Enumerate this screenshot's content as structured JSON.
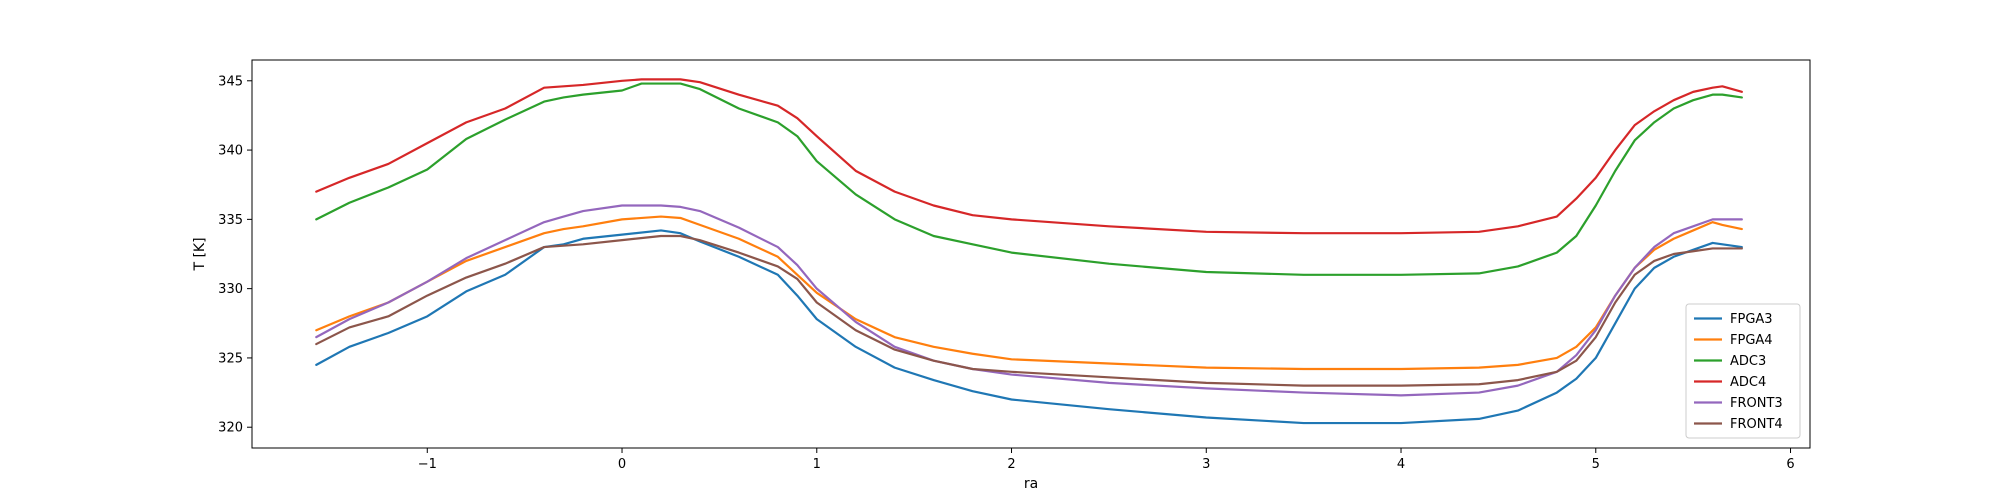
{
  "chart_data": {
    "type": "line",
    "title": "",
    "xlabel": "ra",
    "ylabel": "T [K]",
    "xlim": [
      -1.9,
      6.1
    ],
    "ylim": [
      318.5,
      346.5
    ],
    "xticks": [
      -1,
      0,
      1,
      2,
      3,
      4,
      5,
      6
    ],
    "yticks": [
      320,
      325,
      330,
      335,
      340,
      345
    ],
    "grid": false,
    "legend_position": "lower-right",
    "series": [
      {
        "name": "FPGA3",
        "color": "#1f77b4",
        "x": [
          -1.57,
          -1.4,
          -1.2,
          -1.0,
          -0.8,
          -0.6,
          -0.4,
          -0.3,
          -0.2,
          0.0,
          0.2,
          0.3,
          0.4,
          0.6,
          0.8,
          0.9,
          1.0,
          1.2,
          1.4,
          1.6,
          1.8,
          2.0,
          2.5,
          3.0,
          3.5,
          4.0,
          4.4,
          4.6,
          4.8,
          4.9,
          5.0,
          5.1,
          5.2,
          5.3,
          5.4,
          5.5,
          5.6,
          5.65,
          5.75
        ],
        "y": [
          324.5,
          325.8,
          326.8,
          328.0,
          329.8,
          331.0,
          333.0,
          333.2,
          333.6,
          333.9,
          334.2,
          334.0,
          333.4,
          332.3,
          331.0,
          329.5,
          327.8,
          325.8,
          324.3,
          323.4,
          322.6,
          322.0,
          321.3,
          320.7,
          320.3,
          320.3,
          320.6,
          321.2,
          322.5,
          323.5,
          325.0,
          327.5,
          330.0,
          331.5,
          332.3,
          332.8,
          333.3,
          333.2,
          333.0
        ]
      },
      {
        "name": "FPGA4",
        "color": "#ff7f0e",
        "x": [
          -1.57,
          -1.4,
          -1.2,
          -1.0,
          -0.8,
          -0.6,
          -0.4,
          -0.3,
          -0.2,
          0.0,
          0.2,
          0.3,
          0.4,
          0.6,
          0.8,
          0.9,
          1.0,
          1.2,
          1.4,
          1.6,
          1.8,
          2.0,
          2.5,
          3.0,
          3.5,
          4.0,
          4.4,
          4.6,
          4.8,
          4.9,
          5.0,
          5.1,
          5.2,
          5.3,
          5.4,
          5.5,
          5.6,
          5.65,
          5.75
        ],
        "y": [
          327.0,
          328.0,
          329.0,
          330.5,
          332.0,
          333.0,
          334.0,
          334.3,
          334.5,
          335.0,
          335.2,
          335.1,
          334.6,
          333.6,
          332.3,
          331.0,
          329.7,
          327.8,
          326.5,
          325.8,
          325.3,
          324.9,
          324.6,
          324.3,
          324.2,
          324.2,
          324.3,
          324.5,
          325.0,
          325.8,
          327.2,
          329.5,
          331.5,
          332.8,
          333.6,
          334.2,
          334.8,
          334.6,
          334.3
        ]
      },
      {
        "name": "ADC3",
        "color": "#2ca02c",
        "x": [
          -1.57,
          -1.4,
          -1.2,
          -1.0,
          -0.8,
          -0.6,
          -0.4,
          -0.3,
          -0.2,
          0.0,
          0.1,
          0.2,
          0.3,
          0.4,
          0.6,
          0.8,
          0.9,
          1.0,
          1.2,
          1.4,
          1.6,
          1.8,
          2.0,
          2.5,
          3.0,
          3.5,
          4.0,
          4.4,
          4.6,
          4.8,
          4.9,
          5.0,
          5.1,
          5.2,
          5.3,
          5.4,
          5.5,
          5.6,
          5.65,
          5.75
        ],
        "y": [
          335.0,
          336.2,
          337.3,
          338.6,
          340.8,
          342.2,
          343.5,
          343.8,
          344.0,
          344.3,
          344.8,
          344.8,
          344.8,
          344.4,
          343.0,
          342.0,
          341.0,
          339.2,
          336.8,
          335.0,
          333.8,
          333.2,
          332.6,
          331.8,
          331.2,
          331.0,
          331.0,
          331.1,
          331.6,
          332.6,
          333.8,
          336.0,
          338.5,
          340.7,
          342.0,
          343.0,
          343.6,
          344.0,
          344.0,
          343.8
        ]
      },
      {
        "name": "ADC4",
        "color": "#d62728",
        "x": [
          -1.57,
          -1.4,
          -1.2,
          -1.0,
          -0.8,
          -0.6,
          -0.4,
          -0.3,
          -0.2,
          0.0,
          0.1,
          0.2,
          0.3,
          0.4,
          0.6,
          0.8,
          0.9,
          1.0,
          1.2,
          1.4,
          1.6,
          1.8,
          2.0,
          2.5,
          3.0,
          3.5,
          4.0,
          4.4,
          4.6,
          4.8,
          4.9,
          5.0,
          5.1,
          5.2,
          5.3,
          5.4,
          5.5,
          5.6,
          5.65,
          5.75
        ],
        "y": [
          337.0,
          338.0,
          339.0,
          340.5,
          342.0,
          343.0,
          344.5,
          344.6,
          344.7,
          345.0,
          345.1,
          345.1,
          345.1,
          344.9,
          344.0,
          343.2,
          342.3,
          341.0,
          338.5,
          337.0,
          336.0,
          335.3,
          335.0,
          334.5,
          334.1,
          334.0,
          334.0,
          334.1,
          334.5,
          335.2,
          336.5,
          338.0,
          340.0,
          341.8,
          342.8,
          343.6,
          344.2,
          344.5,
          344.6,
          344.2
        ]
      },
      {
        "name": "FRONT3",
        "color": "#9467bd",
        "x": [
          -1.57,
          -1.4,
          -1.2,
          -1.0,
          -0.8,
          -0.6,
          -0.4,
          -0.3,
          -0.2,
          0.0,
          0.2,
          0.3,
          0.4,
          0.6,
          0.8,
          0.9,
          1.0,
          1.2,
          1.4,
          1.6,
          1.8,
          2.0,
          2.5,
          3.0,
          3.5,
          4.0,
          4.4,
          4.6,
          4.8,
          4.9,
          5.0,
          5.1,
          5.2,
          5.3,
          5.4,
          5.5,
          5.6,
          5.65,
          5.75
        ],
        "y": [
          326.5,
          327.8,
          329.0,
          330.5,
          332.2,
          333.5,
          334.8,
          335.2,
          335.6,
          336.0,
          336.0,
          335.9,
          335.6,
          334.4,
          333.0,
          331.7,
          330.0,
          327.6,
          325.8,
          324.8,
          324.2,
          323.8,
          323.2,
          322.8,
          322.5,
          322.3,
          322.5,
          323.0,
          324.0,
          325.2,
          327.0,
          329.5,
          331.5,
          333.0,
          334.0,
          334.5,
          335.0,
          335.0,
          335.0
        ]
      },
      {
        "name": "FRONT4",
        "color": "#8c564b",
        "x": [
          -1.57,
          -1.4,
          -1.2,
          -1.0,
          -0.8,
          -0.6,
          -0.4,
          -0.3,
          -0.2,
          0.0,
          0.2,
          0.3,
          0.4,
          0.6,
          0.8,
          0.9,
          1.0,
          1.2,
          1.4,
          1.6,
          1.8,
          2.0,
          2.5,
          3.0,
          3.5,
          4.0,
          4.4,
          4.6,
          4.8,
          4.9,
          5.0,
          5.1,
          5.2,
          5.3,
          5.4,
          5.5,
          5.6,
          5.65,
          5.75
        ],
        "y": [
          326.0,
          327.2,
          328.0,
          329.5,
          330.8,
          331.8,
          333.0,
          333.1,
          333.2,
          333.5,
          333.8,
          333.8,
          333.5,
          332.6,
          331.6,
          330.7,
          329.0,
          327.0,
          325.6,
          324.8,
          324.2,
          324.0,
          323.6,
          323.2,
          323.0,
          323.0,
          323.1,
          323.4,
          324.0,
          324.8,
          326.5,
          329.0,
          331.0,
          332.0,
          332.5,
          332.7,
          332.9,
          332.9,
          332.9
        ]
      }
    ]
  }
}
